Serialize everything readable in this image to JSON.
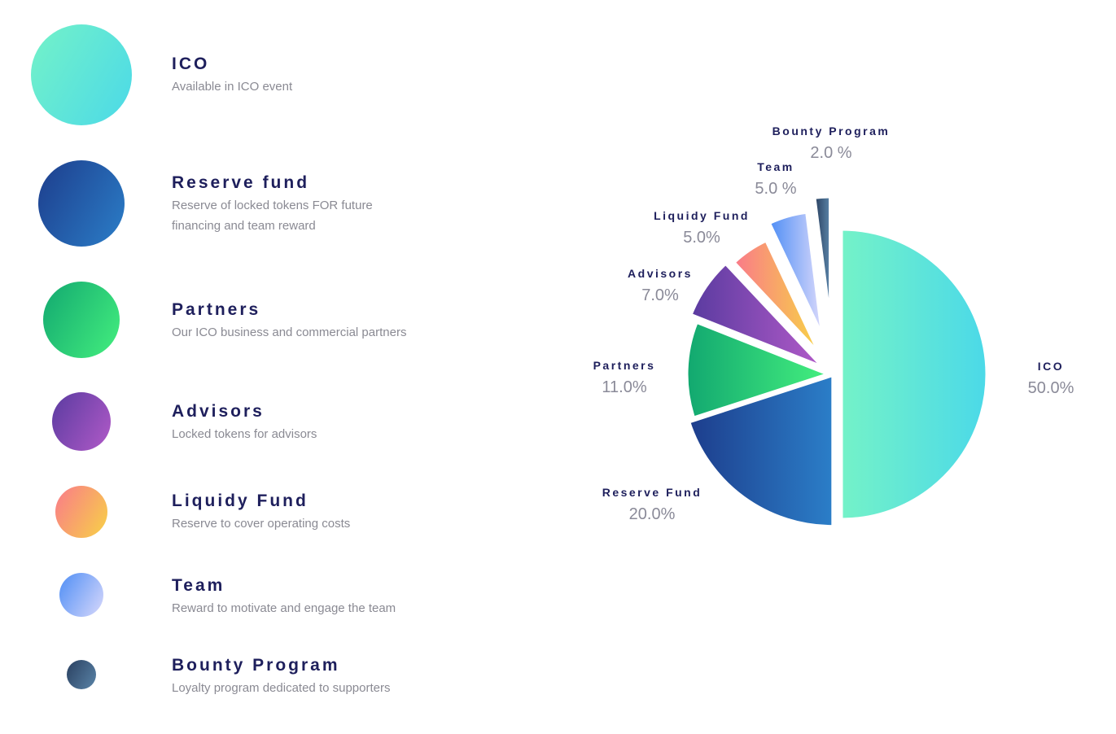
{
  "legend": [
    {
      "title": "ICO",
      "desc": "Available in ICO event",
      "color": "#4fe0d8"
    },
    {
      "title": "Reserve fund",
      "desc": "Reserve of locked tokens FOR future financing and team reward",
      "color": "#2360b0"
    },
    {
      "title": "Partners",
      "desc": "Our ICO business and commercial partners",
      "color": "#2fd27f"
    },
    {
      "title": "Advisors",
      "desc": "Locked tokens for advisors",
      "color": "#7a48b0"
    },
    {
      "title": "Liquidy Fund",
      "desc": "Reserve to cover operating costs",
      "color": "#f69a74"
    },
    {
      "title": "Team",
      "desc": "Reward to motivate and engage the team",
      "color": "#6a9ef5"
    },
    {
      "title": "Bounty Program",
      "desc": "Loyalty program dedicated to supporters",
      "color": "#2f4a6e"
    }
  ],
  "chart_data": {
    "type": "pie",
    "title": "",
    "categories": [
      "ICO",
      "Reserve Fund",
      "Partners",
      "Advisors",
      "Liquidy Fund",
      "Team",
      "Bounty Program"
    ],
    "values": [
      50.0,
      20.0,
      11.0,
      7.0,
      5.0,
      5.0,
      2.0
    ],
    "labels": [
      "50.0%",
      "20.0%",
      "11.0%",
      "7.0%",
      "5.0%",
      "5.0 %",
      "2.0 %"
    ],
    "colors": [
      [
        "#74f2c8",
        "#4bd9e8"
      ],
      [
        "#1d3d8c",
        "#2b7ec8"
      ],
      [
        "#12a870",
        "#44ef7e"
      ],
      [
        "#5a3ba0",
        "#b15ac8"
      ],
      [
        "#f97a8a",
        "#f8d246"
      ],
      [
        "#4f8ef5",
        "#d8d8fb"
      ],
      [
        "#2a4060",
        "#5a84a8"
      ]
    ]
  }
}
